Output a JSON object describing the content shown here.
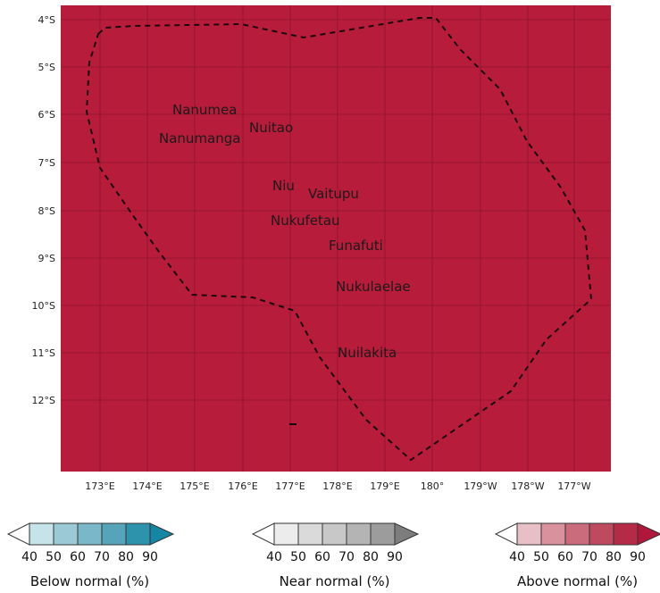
{
  "map": {
    "fill_color": "#b71c3a",
    "grid_color": "#8e1530",
    "lat_labels": [
      "4°S",
      "5°S",
      "6°S",
      "7°S",
      "8°S",
      "9°S",
      "10°S",
      "11°S",
      "12°S"
    ],
    "lon_labels": [
      "173°E",
      "174°E",
      "175°E",
      "176°E",
      "177°E",
      "178°E",
      "179°E",
      "180°",
      "179°W",
      "178°W",
      "177°W"
    ],
    "islands": [
      "Nanumea",
      "Nuitao",
      "Nanumanga",
      "Niu",
      "Vaitupu",
      "Nukufetau",
      "Funafuti",
      "Nukulaelae",
      "Nuilakita"
    ]
  },
  "legends": [
    {
      "title": "Below normal (%)",
      "ticks": [
        "40",
        "50",
        "60",
        "70",
        "80",
        "90"
      ],
      "colors": [
        "#ffffff",
        "#c6e3ea",
        "#9cc9d6",
        "#7ab8c9",
        "#55a4ba",
        "#2d93ad",
        "#1586a3"
      ]
    },
    {
      "title": "Near normal (%)",
      "ticks": [
        "40",
        "50",
        "60",
        "70",
        "80",
        "90"
      ],
      "colors": [
        "#ffffff",
        "#ececec",
        "#dadada",
        "#c8c8c8",
        "#b4b4b4",
        "#9c9c9c",
        "#7d7d7d"
      ]
    },
    {
      "title": "Above normal (%)",
      "ticks": [
        "40",
        "50",
        "60",
        "70",
        "80",
        "90"
      ],
      "colors": [
        "#ffffff",
        "#e8bfc6",
        "#d9919e",
        "#cb6c7c",
        "#bd4a5f",
        "#b52a46",
        "#b0173a"
      ]
    }
  ]
}
